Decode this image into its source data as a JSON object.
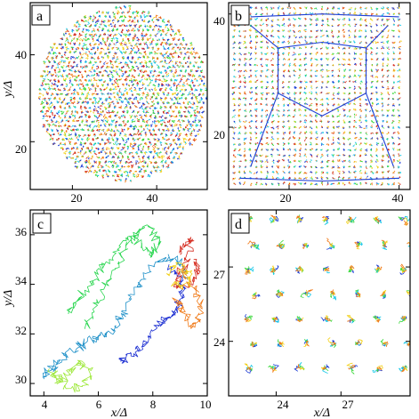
{
  "chart_data": [
    {
      "type": "scatter",
      "panel_label": "a",
      "xlabel": "",
      "ylabel": "y/Δ",
      "x_ticks": [
        "20",
        "40"
      ],
      "y_ticks": [
        "20",
        "40"
      ],
      "xlim": [
        10,
        52
      ],
      "ylim": [
        9,
        52
      ],
      "grid": false,
      "colors": [
        "#1f3fd6",
        "#18c8e8",
        "#3ad83a",
        "#f2d11c",
        "#f07a18",
        "#d4281c"
      ],
      "description_shape": "circular cluster of particle trajectories",
      "cluster_center": [
        32,
        31
      ],
      "cluster_radius": 20,
      "lattice_spacing": 1.2
    },
    {
      "type": "scatter",
      "panel_label": "b",
      "xlabel": "",
      "ylabel": "",
      "x_ticks": [
        "20",
        "40"
      ],
      "y_ticks": [
        "20",
        "40"
      ],
      "xlim": [
        9,
        42
      ],
      "ylim": [
        9,
        42
      ],
      "grid": false,
      "colors": [
        "#1f3fd6",
        "#18c8e8",
        "#3ad83a",
        "#f2d11c",
        "#f07a18",
        "#d4281c"
      ],
      "square_extent": [
        [
          10,
          40
        ],
        [
          10,
          41
        ]
      ],
      "lattice_spacing": 1.0
    },
    {
      "type": "line",
      "panel_label": "c",
      "xlabel": "x/Δ",
      "ylabel": "y/Δ",
      "x_ticks": [
        "4",
        "6",
        "8",
        "10"
      ],
      "y_ticks": [
        "30",
        "32",
        "34",
        "36"
      ],
      "xlim": [
        3.5,
        10
      ],
      "ylim": [
        29.5,
        37
      ],
      "grid": false,
      "series": [
        {
          "color": "#1e90c8",
          "x": [
            9.3,
            9.0,
            8.6,
            8.1,
            7.6,
            7.2,
            6.9,
            6.6,
            6.3,
            6.0,
            5.6,
            5.2,
            4.8,
            4.5,
            4.2,
            4.0
          ],
          "y": [
            34.2,
            34.8,
            35.1,
            34.9,
            34.2,
            33.5,
            32.8,
            32.3,
            32.0,
            31.9,
            31.7,
            31.4,
            31.1,
            30.8,
            30.5,
            30.3
          ]
        },
        {
          "color": "#2ad650",
          "x": [
            5.5,
            5.8,
            6.2,
            6.6,
            7.0,
            7.3,
            7.7,
            8.0,
            8.2,
            8.0,
            7.6,
            7.2,
            6.8,
            6.4,
            6.0,
            5.6,
            5.2,
            4.9
          ],
          "y": [
            32.2,
            33.0,
            33.8,
            34.6,
            35.4,
            35.9,
            36.3,
            36.1,
            35.6,
            35.2,
            35.5,
            35.9,
            35.6,
            35.0,
            34.4,
            33.9,
            33.3,
            32.8
          ]
        },
        {
          "color": "#1c2fd2",
          "x": [
            8.6,
            8.9,
            9.1,
            9.0,
            8.8,
            8.5,
            8.2,
            7.9,
            7.6,
            7.3,
            7.0,
            6.8
          ],
          "y": [
            34.8,
            34.3,
            33.9,
            33.4,
            32.9,
            32.6,
            32.3,
            31.9,
            31.5,
            31.2,
            31.0,
            30.9
          ]
        },
        {
          "color": "#f07a18",
          "x": [
            9.1,
            9.4,
            9.6,
            9.8,
            9.7,
            9.5,
            9.2,
            9.0,
            8.8
          ],
          "y": [
            34.6,
            34.1,
            33.6,
            33.1,
            32.6,
            32.3,
            32.8,
            33.2,
            33.4
          ]
        },
        {
          "color": "#d4281c",
          "x": [
            9.0,
            9.2,
            9.4,
            9.3,
            9.0,
            8.8,
            9.1,
            9.5,
            9.7,
            9.5
          ],
          "y": [
            35.2,
            35.6,
            35.9,
            34.9,
            34.4,
            34.0,
            33.8,
            34.3,
            34.6,
            35.0
          ]
        },
        {
          "color": "#9ee83a",
          "x": [
            4.2,
            4.6,
            5.0,
            5.4,
            5.7,
            5.4,
            5.0,
            4.6,
            4.3
          ],
          "y": [
            30.6,
            30.2,
            30.5,
            30.9,
            30.4,
            29.9,
            29.8,
            30.1,
            30.4
          ]
        },
        {
          "color": "#f2d11c",
          "x": [
            8.6,
            8.9,
            9.2,
            9.4,
            9.1,
            8.8
          ],
          "y": [
            34.4,
            34.8,
            34.6,
            34.2,
            33.9,
            34.1
          ]
        }
      ]
    },
    {
      "type": "scatter",
      "panel_label": "d",
      "xlabel": "x/Δ",
      "ylabel": "",
      "x_ticks": [
        "24",
        "27"
      ],
      "y_ticks": [
        "24",
        "27"
      ],
      "xlim": [
        21.8,
        30.2
      ],
      "ylim": [
        21.8,
        29.3
      ],
      "grid": false,
      "colors": [
        "#1f3fd6",
        "#18c8e8",
        "#3ad83a",
        "#f2d11c",
        "#f07a18",
        "#d4281c"
      ],
      "rows": 7,
      "cols": 7
    }
  ]
}
